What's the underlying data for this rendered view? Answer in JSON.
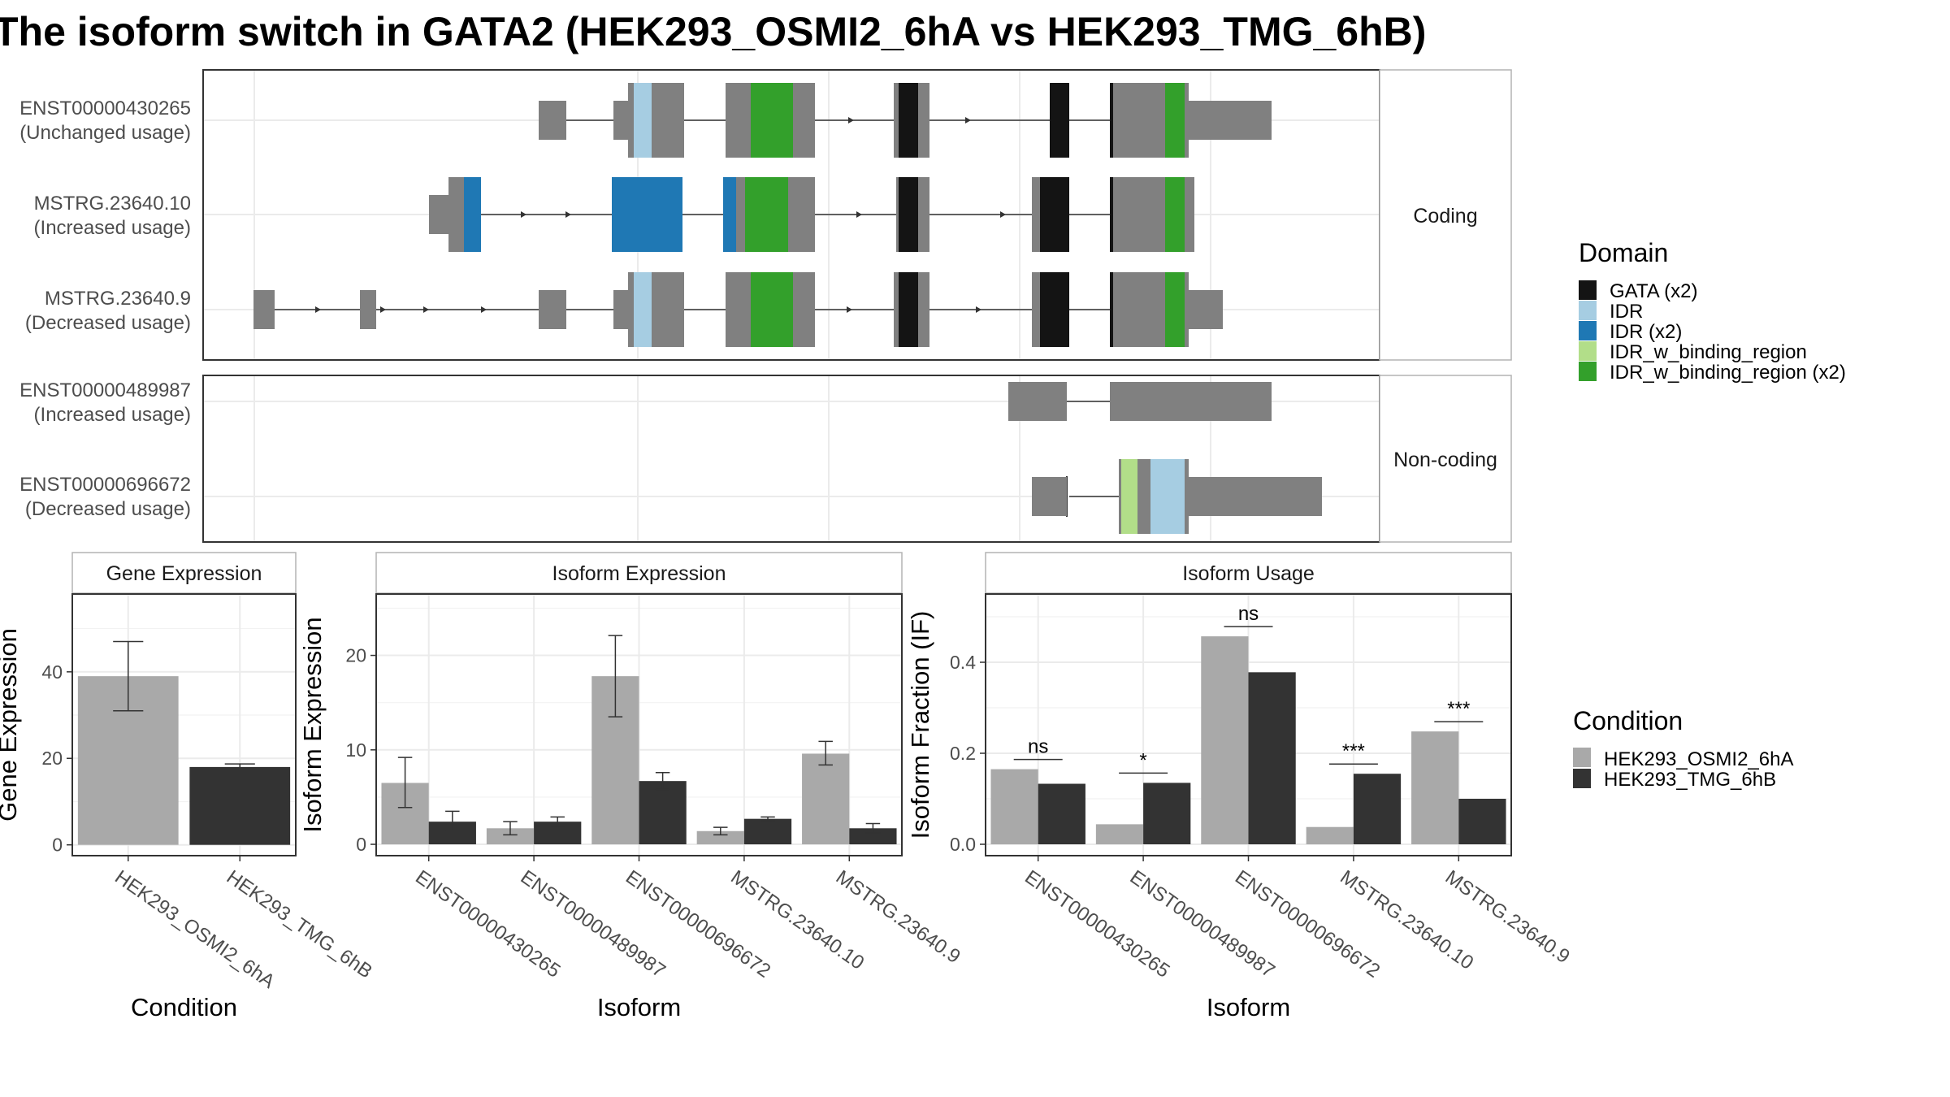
{
  "title": "The isoform switch in GATA2 (HEK293_OSMI2_6hA vs HEK293_TMG_6hB)",
  "colors": {
    "exon": "#808080",
    "gata": "#141414",
    "idr": "#a6cde2",
    "idr_x2": "#1f78b4",
    "idr_binding": "#b2de89",
    "idr_binding_x2": "#33a02b",
    "cond_a": "#a9a9a9",
    "cond_b": "#333333",
    "panel_border": "#333333",
    "strip_border": "#b3b3b3",
    "grid": "#ebebeb"
  },
  "structure": {
    "coding_label": "Coding",
    "noncoding_label": "Non-coding",
    "transcripts": [
      {
        "id": "ENST00000430265",
        "usage": "(Unchanged usage)",
        "group": "coding"
      },
      {
        "id": "MSTRG.23640.10",
        "usage": "(Increased usage)",
        "group": "coding"
      },
      {
        "id": "MSTRG.23640.9",
        "usage": "(Decreased usage)",
        "group": "coding"
      },
      {
        "id": "ENST00000489987",
        "usage": "(Increased usage)",
        "group": "noncoding"
      },
      {
        "id": "ENST00000696672",
        "usage": "(Decreased usage)",
        "group": "noncoding"
      }
    ]
  },
  "legends": {
    "domain": {
      "title": "Domain",
      "items": [
        {
          "label": "GATA (x2)",
          "color_key": "gata"
        },
        {
          "label": "IDR",
          "color_key": "idr"
        },
        {
          "label": "IDR (x2)",
          "color_key": "idr_x2"
        },
        {
          "label": "IDR_w_binding_region",
          "color_key": "idr_binding"
        },
        {
          "label": "IDR_w_binding_region (x2)",
          "color_key": "idr_binding_x2"
        }
      ]
    },
    "condition": {
      "title": "Condition",
      "items": [
        {
          "label": "HEK293_OSMI2_6hA",
          "color_key": "cond_a"
        },
        {
          "label": "HEK293_TMG_6hB",
          "color_key": "cond_b"
        }
      ]
    }
  },
  "chart_data": [
    {
      "type": "bar",
      "title": "Gene Expression",
      "xlabel": "Condition",
      "ylabel": "Gene Expression",
      "ylim": [
        -2.5,
        58
      ],
      "yticks": [
        0,
        20,
        40
      ],
      "categories": [
        "HEK293_OSMI2_6hA",
        "HEK293_TMG_6hB"
      ],
      "values": [
        39,
        18
      ],
      "errors": [
        [
          31,
          47
        ],
        [
          17.5,
          18.7
        ]
      ],
      "bar_color_keys": [
        "cond_a",
        "cond_b"
      ]
    },
    {
      "type": "bar",
      "title": "Isoform Expression",
      "xlabel": "Isoform",
      "ylabel": "Isoform Expression",
      "ylim": [
        -1.2,
        26.5
      ],
      "yticks": [
        0,
        10,
        20
      ],
      "categories": [
        "ENST00000430265",
        "ENST00000489987",
        "ENST00000696672",
        "MSTRG.23640.10",
        "MSTRG.23640.9"
      ],
      "series": [
        {
          "name": "HEK293_OSMI2_6hA",
          "color_key": "cond_a",
          "values": [
            6.5,
            1.7,
            17.8,
            1.4,
            9.6
          ],
          "errors": [
            [
              3.9,
              9.2
            ],
            [
              1.0,
              2.4
            ],
            [
              13.5,
              22.1
            ],
            [
              1.0,
              1.8
            ],
            [
              8.4,
              10.9
            ]
          ]
        },
        {
          "name": "HEK293_TMG_6hB",
          "color_key": "cond_b",
          "values": [
            2.4,
            2.4,
            6.7,
            2.7,
            1.7
          ],
          "errors": [
            [
              1.4,
              3.5
            ],
            [
              1.9,
              2.9
            ],
            [
              5.8,
              7.6
            ],
            [
              2.5,
              2.9
            ],
            [
              1.2,
              2.2
            ]
          ]
        }
      ]
    },
    {
      "type": "bar",
      "title": "Isoform Usage",
      "xlabel": "Isoform",
      "ylabel": "Isoform Fraction (IF)",
      "ylim": [
        -0.025,
        0.55
      ],
      "yticks": [
        0.0,
        0.2,
        0.4
      ],
      "ytick_labels": [
        "0.0",
        "0.2",
        "0.4"
      ],
      "categories": [
        "ENST00000430265",
        "ENST00000489987",
        "ENST00000696672",
        "MSTRG.23640.10",
        "MSTRG.23640.9"
      ],
      "series": [
        {
          "name": "HEK293_OSMI2_6hA",
          "color_key": "cond_a",
          "values": [
            0.165,
            0.044,
            0.457,
            0.038,
            0.248
          ]
        },
        {
          "name": "HEK293_TMG_6hB",
          "color_key": "cond_b",
          "values": [
            0.133,
            0.135,
            0.378,
            0.155,
            0.1
          ]
        }
      ],
      "significance": [
        "ns",
        "*",
        "ns",
        "***",
        "***"
      ]
    }
  ]
}
